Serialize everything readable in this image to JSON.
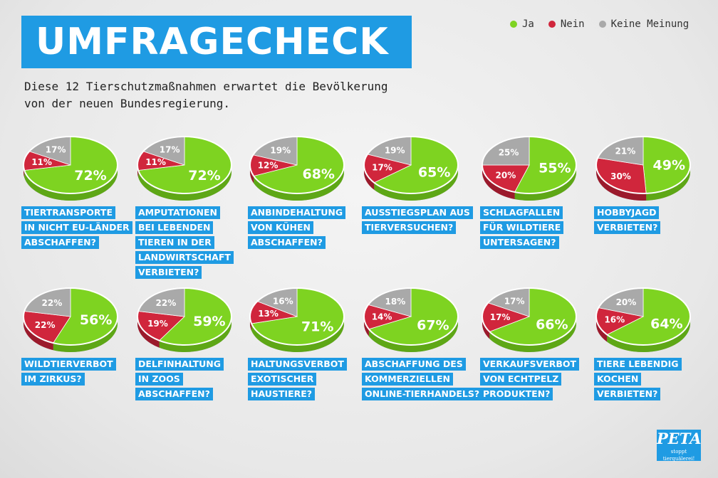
{
  "title": "UMFRAGECHECK",
  "subtitle_line1": "Diese 12 Tierschutzmaßnahmen erwartet die Bevölkerung",
  "subtitle_line2": "von der neuen Bundesregierung.",
  "legend": [
    {
      "label": "Ja",
      "color": "#7ed321"
    },
    {
      "label": "Nein",
      "color": "#d0263c"
    },
    {
      "label": "Keine Meinung",
      "color": "#a9a9a9"
    }
  ],
  "logo": {
    "name": "PETA",
    "tagline": "stoppt tierquälerei!"
  },
  "chart_data": {
    "type": "pie",
    "slice_order": [
      "Ja",
      "Nein",
      "Keine Meinung"
    ],
    "colors": {
      "Ja": "#7ed321",
      "Nein": "#d0263c",
      "Keine Meinung": "#a9a9a9"
    },
    "items": [
      {
        "question": [
          "TIERTRANSPORTE",
          "IN NICHT EU-LÄNDER",
          "ABSCHAFFEN?"
        ],
        "values": [
          72,
          11,
          17
        ]
      },
      {
        "question": [
          "AMPUTATIONEN",
          "BEI LEBENDEN",
          "TIEREN IN DER",
          "LANDWIRTSCHAFT",
          "VERBIETEN?"
        ],
        "values": [
          72,
          11,
          17
        ]
      },
      {
        "question": [
          "ANBINDEHALTUNG",
          "VON KÜHEN",
          "ABSCHAFFEN?"
        ],
        "values": [
          68,
          12,
          19
        ]
      },
      {
        "question": [
          "AUSSTIEGSPLAN AUS",
          "TIERVERSUCHEN?"
        ],
        "values": [
          65,
          17,
          19
        ]
      },
      {
        "question": [
          "SCHLAGFALLEN",
          "FÜR WILDTIERE",
          "UNTERSAGEN?"
        ],
        "values": [
          55,
          20,
          25
        ]
      },
      {
        "question": [
          "HOBBYJAGD",
          "VERBIETEN?"
        ],
        "values": [
          49,
          30,
          21
        ]
      },
      {
        "question": [
          "WILDTIERVERBOT",
          "IM ZIRKUS?"
        ],
        "values": [
          56,
          22,
          22
        ]
      },
      {
        "question": [
          "DELFINHALTUNG",
          "IN ZOOS",
          "ABSCHAFFEN?"
        ],
        "values": [
          59,
          19,
          22
        ]
      },
      {
        "question": [
          "HALTUNGSVERBOT",
          "EXOTISCHER",
          "HAUSTIERE?"
        ],
        "values": [
          71,
          13,
          16
        ]
      },
      {
        "question": [
          "ABSCHAFFUNG DES",
          "KOMMERZIELLEN",
          "ONLINE-TIERHANDELS?"
        ],
        "values": [
          67,
          14,
          18
        ]
      },
      {
        "question": [
          "VERKAUFSVERBOT",
          "VON ECHTPELZ",
          "PRODUKTEN?"
        ],
        "values": [
          66,
          17,
          17
        ]
      },
      {
        "question": [
          "TIERE LEBENDIG",
          "KOCHEN",
          "VERBIETEN?"
        ],
        "values": [
          64,
          16,
          20
        ]
      }
    ]
  }
}
